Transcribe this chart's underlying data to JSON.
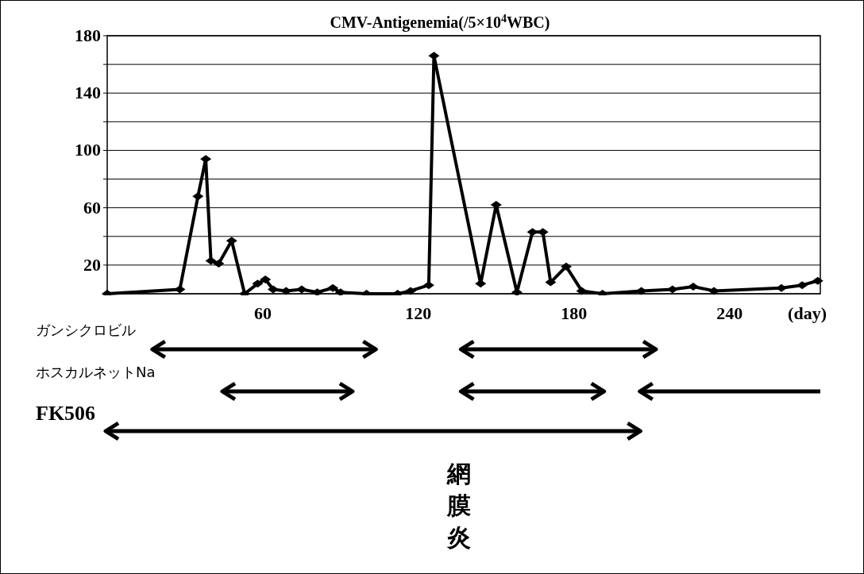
{
  "chart_data": [
    {
      "type": "line",
      "title": "CMV-Antigenemia(/5×10$^{4}$WBC)",
      "x": [
        0,
        28,
        35,
        38,
        40,
        43,
        48,
        53,
        58,
        61,
        64,
        69,
        75,
        81,
        87,
        90,
        100,
        112,
        117,
        124,
        126,
        144,
        150,
        158,
        164,
        168,
        171,
        177,
        183,
        191,
        206,
        218,
        226,
        234,
        260,
        268,
        274
      ],
      "values": [
        0,
        3,
        68,
        94,
        23,
        21,
        37,
        0,
        7,
        10,
        3,
        2,
        3,
        1,
        4,
        1,
        0,
        0,
        2,
        6,
        166,
        7,
        62,
        1,
        43,
        43,
        8,
        19,
        2,
        0,
        2,
        3,
        5,
        2,
        4,
        6,
        9
      ],
      "color": "#000000",
      "marker": "diamond",
      "line_style": "solid",
      "grid": "y",
      "tick_labels": "y",
      "xlim": [
        0,
        275
      ],
      "ylim": [
        0,
        180
      ],
      "yticks": [
        {
          "value": 0,
          "label": null
        },
        20,
        {
          "value": 40,
          "label": null
        },
        60,
        {
          "value": 80,
          "label": null
        },
        100,
        {
          "value": 120,
          "label": null
        },
        140,
        {
          "value": 160,
          "label": null
        },
        180
      ],
      "annotations": [
        "網膜炎"
      ]
    },
    {
      "type": "bar",
      "orientation": "horizontal",
      "xlabel": "(day)",
      "xlim": [
        0,
        275
      ],
      "xticks": [
        60,
        120,
        180,
        240
      ],
      "categories": [
        "ガンシクロビル",
        "ホスカルネットNa",
        "FK506"
      ],
      "series": [
        {
          "color": "#000000",
          "base": [
            18,
            45,
            0
          ],
          "values": [
            85,
            49,
            205
          ]
        },
        {
          "color": "#000000",
          "base": [
            137,
            137,
            null
          ],
          "values": [
            74,
            54,
            null
          ]
        },
        {
          "color": "#000000",
          "base": [
            null,
            206,
            null
          ],
          "values": [
            null,
            69,
            null
          ]
        }
      ]
    }
  ]
}
